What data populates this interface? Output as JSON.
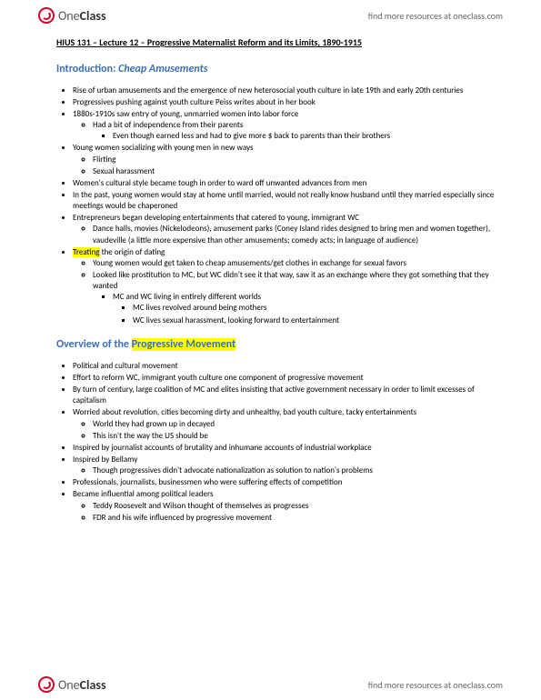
{
  "brand": {
    "one": "One",
    "class": "Class"
  },
  "resources_link": "find more resources at oneclass.com",
  "doc_title": "HIUS 131 – Lecture 12 – Progressive Maternalist Reform and its Limits, 1890-1915",
  "section_intro": {
    "label": "Introduction: ",
    "italic": "Cheap Amusements"
  },
  "section_overview": {
    "label": "Overview of the ",
    "highlight": "Progressive Movement"
  },
  "treating_word": "Treating",
  "treating_rest": " the origin of dating",
  "intro_items": [
    "Rise of urban amusements and the emergence of new heterosocial youth culture in late 19th and early 20th centuries",
    "Progressives pushing against youth culture Peiss writes about in her book",
    "1880s-1910s saw entry of young, unmarried women into labor force"
  ],
  "intro_sub1": [
    "Had a bit of independence from their parents"
  ],
  "intro_sub1_sub": [
    "Even though earned less and had to give more $ back to parents than their brothers"
  ],
  "intro_item4": "Young women socializing with young men in new ways",
  "intro_sub2": [
    "Flirting",
    "Sexual harassment"
  ],
  "intro_item5": "Women's cultural style became tough in order to ward off unwanted advances from men",
  "intro_item6": "In the past, young women would stay at home until married, would not really know husband until they married especially since meetings would be chaperoned",
  "intro_item7": "Entrepreneurs began developing entertainments that catered to young, immigrant WC",
  "intro_sub3": [
    "Dance halls, movies (Nickelodeons), amusement parks (Coney Island rides designed to bring men and women together), vaudeville (a little more expensive than other amusements; comedy acts; in language of audience)"
  ],
  "treating_sub": [
    "Young women would get taken to cheap amusements/get clothes in exchange for sexual favors",
    "Looked like prostitution to MC, but WC didn't see it that way, saw it as an exchange where they got something that they wanted"
  ],
  "treating_subsub": [
    "MC and WC living in entirely different worlds"
  ],
  "treating_subsubsub": [
    "MC lives revolved around being mothers",
    "WC lives sexual harassment, looking forward to entertainment"
  ],
  "overview_items": [
    "Political and cultural movement",
    "Effort to reform WC, immigrant youth culture one component of progressive movement",
    "By turn of century, large coalition of MC and elites insisting that active government necessary in order to limit excesses of capitalism",
    "Worried about revolution, cities becoming dirty and unhealthy, bad youth culture, tacky entertainments"
  ],
  "overview_sub1": [
    "World they had grown up in decayed",
    "This isn't the way the US should be"
  ],
  "overview_item5": "Inspired by journalist accounts of brutality and inhumane accounts of industrial workplace",
  "overview_item6": "Inspired by Bellamy",
  "overview_sub2": [
    "Though progressives didn't advocate nationalization as solution to nation's problems"
  ],
  "overview_item7": "Professionals, journalists, businessmen who were suffering effects of competition",
  "overview_item8": "Became influential among political leaders",
  "overview_sub3": [
    "Teddy Roosevelt and Wilson thought of themselves as progresses",
    "FDR and his wife influenced by progressive movement"
  ],
  "colors": {
    "blue": "#3b6fb5",
    "highlight": "#ffff00",
    "logo_red": "#d4002a"
  }
}
